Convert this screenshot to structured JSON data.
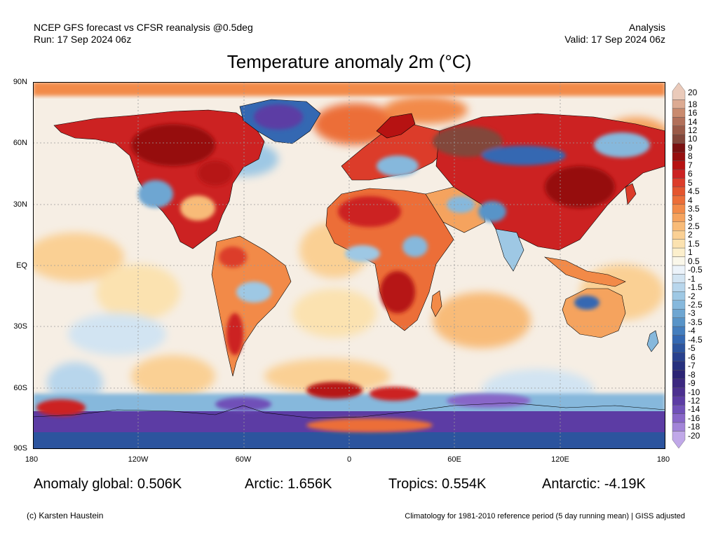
{
  "header": {
    "left_line1": "NCEP GFS forecast vs CFSR reanalysis @0.5deg",
    "left_line2": "Run: 17 Sep 2024 06z",
    "right_line1": "Analysis",
    "right_line2": "Valid: 17 Sep 2024 06z"
  },
  "title": "Temperature anomaly 2m (°C)",
  "lat_labels": [
    "90N",
    "60N",
    "30N",
    "EQ",
    "30S",
    "60S",
    "90S"
  ],
  "lon_labels": [
    "180",
    "120W",
    "60W",
    "0",
    "60E",
    "120E",
    "180"
  ],
  "colorbar": {
    "labels": [
      "20",
      "18",
      "16",
      "14",
      "12",
      "10",
      "9",
      "8",
      "7",
      "6",
      "5",
      "4.5",
      "4",
      "3.5",
      "3",
      "2.5",
      "2",
      "1.5",
      "1",
      "0.5",
      "-0.5",
      "-1",
      "-1.5",
      "-2",
      "-2.5",
      "-3",
      "-3.5",
      "-4",
      "-4.5",
      "-5",
      "-6",
      "-7",
      "-8",
      "-9",
      "-10",
      "-12",
      "-14",
      "-16",
      "-18",
      "-20"
    ],
    "colors": [
      "#eacaba",
      "#dcaa92",
      "#c98a6e",
      "#b2705a",
      "#9a5a48",
      "#82463a",
      "#7a1010",
      "#960e0e",
      "#b61212",
      "#cc2222",
      "#dc3c2a",
      "#e4552e",
      "#ec6e38",
      "#f28a48",
      "#f5a35e",
      "#f8bb78",
      "#fad094",
      "#fbe2b0",
      "#fcefcc",
      "#faf7ea",
      "#ecf3fa",
      "#d2e4f2",
      "#b8d6ec",
      "#9ec8e4",
      "#86b8dc",
      "#6ea6d2",
      "#5894c8",
      "#447ebe",
      "#3468b2",
      "#2c549e",
      "#28408e",
      "#26307e",
      "#2c2474",
      "#3c2880",
      "#4c3090",
      "#5c3ca4",
      "#7050b8",
      "#8866c8",
      "#a284d8",
      "#c0a8e8"
    ]
  },
  "stats": {
    "global": "Anomaly global: 0.506K",
    "arctic": "Arctic: 1.656K",
    "tropics": "Tropics: 0.554K",
    "antarctic": "Antarctic: -4.19K"
  },
  "footer": {
    "left": "(c) Karsten Haustein",
    "right": "Climatology for 1981-2010 reference period (5 day running mean) | GISS adjusted"
  }
}
